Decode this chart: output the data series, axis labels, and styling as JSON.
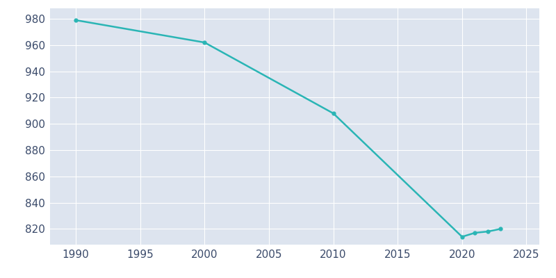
{
  "years": [
    1990,
    2000,
    2010,
    2020,
    2021,
    2022,
    2023
  ],
  "population": [
    979,
    962,
    908,
    814,
    817,
    818,
    820
  ],
  "line_color": "#2ab5b5",
  "marker_style": "o",
  "marker_size": 3.5,
  "line_width": 1.8,
  "fig_bg_color": "#ffffff",
  "plot_bg_color": "#dde4ef",
  "grid_color": "#ffffff",
  "tick_color": "#3a4a6a",
  "tick_fontsize": 11,
  "xlim": [
    1988,
    2026
  ],
  "ylim": [
    808,
    988
  ],
  "xticks": [
    1990,
    1995,
    2000,
    2005,
    2010,
    2015,
    2020,
    2025
  ],
  "yticks": [
    820,
    840,
    860,
    880,
    900,
    920,
    940,
    960,
    980
  ]
}
